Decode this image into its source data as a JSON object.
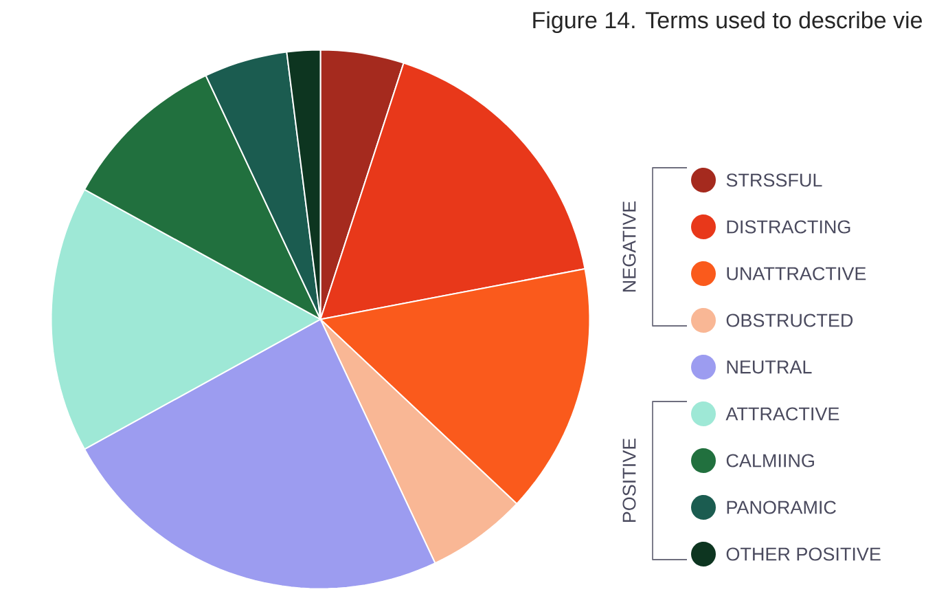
{
  "chart_data": {
    "type": "pie",
    "title": "Figure 14. Terms used to describe vie",
    "categories": [
      "STRSSFUL",
      "DISTRACTING",
      "UNATTRACTIVE",
      "OBSTRUCTED",
      "NEUTRAL",
      "ATTRACTIVE",
      "CALMIING",
      "PANORAMIC",
      "OTHER POSITIVE"
    ],
    "values": [
      5,
      17,
      15,
      6,
      24,
      16,
      10,
      5,
      2
    ],
    "colors": [
      "#a52a1e",
      "#e8381a",
      "#fa5a1c",
      "#f9b795",
      "#9c9cf0",
      "#9ee8d6",
      "#21703e",
      "#1b5c50",
      "#0d3520"
    ],
    "legend": "right",
    "annotations": [
      "NEGATIVE",
      "POSITIVE"
    ]
  }
}
